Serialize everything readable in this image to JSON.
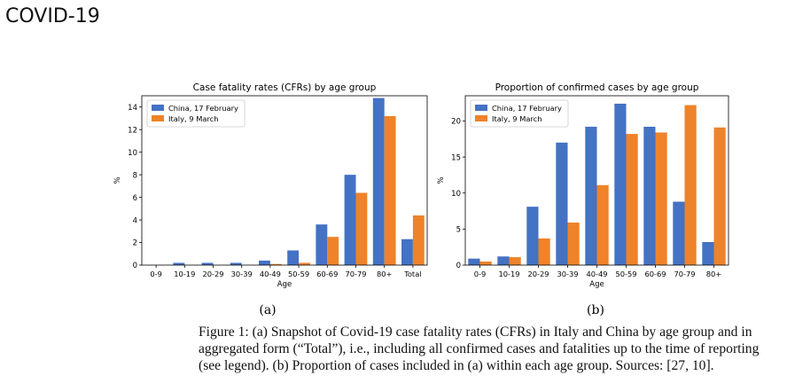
{
  "slide": {
    "title": "COVID-19"
  },
  "colors": {
    "china": "#4472c4",
    "italy": "#ee8329",
    "axis": "#000000"
  },
  "chart_data": [
    {
      "type": "bar",
      "title": "Case fatality rates (CFRs) by age group",
      "xlabel": "Age",
      "ylabel": "%",
      "ylim": [
        0,
        15
      ],
      "yticks": [
        0,
        2,
        4,
        6,
        8,
        10,
        12,
        14
      ],
      "categories": [
        "0-9",
        "10-19",
        "20-29",
        "30-39",
        "40-49",
        "50-59",
        "60-69",
        "70-79",
        "80+",
        "Total"
      ],
      "series": [
        {
          "name": "China, 17 February",
          "values": [
            0,
            0.2,
            0.2,
            0.2,
            0.4,
            1.3,
            3.6,
            8.0,
            14.8,
            2.3
          ]
        },
        {
          "name": "Italy, 9 March",
          "values": [
            0,
            0,
            0,
            0,
            0.1,
            0.2,
            2.5,
            6.4,
            13.2,
            4.4
          ]
        }
      ],
      "legend": "top-left",
      "panel": "(a)"
    },
    {
      "type": "bar",
      "title": "Proportion of confirmed cases by age group",
      "xlabel": "Age",
      "ylabel": "%",
      "ylim": [
        0,
        23.5
      ],
      "yticks": [
        0,
        5,
        10,
        15,
        20
      ],
      "categories": [
        "0-9",
        "10-19",
        "20-29",
        "30-39",
        "40-49",
        "50-59",
        "60-69",
        "70-79",
        "80+"
      ],
      "series": [
        {
          "name": "China, 17 February",
          "values": [
            0.9,
            1.2,
            8.1,
            17.0,
            19.2,
            22.4,
            19.2,
            8.8,
            3.2
          ]
        },
        {
          "name": "Italy, 9 March",
          "values": [
            0.5,
            1.1,
            3.7,
            5.9,
            11.1,
            18.2,
            18.4,
            22.2,
            19.1
          ]
        }
      ],
      "legend": "top-left",
      "panel": "(b)"
    }
  ],
  "caption": "Figure 1: (a) Snapshot of Covid-19 case fatality rates (CFRs) in Italy and China by age group and in aggregated form (“Total”), i.e., including all confirmed cases and fatalities up to the time of reporting (see legend). (b) Proportion of cases included in (a) within each age group. Sources: [27, 10]."
}
